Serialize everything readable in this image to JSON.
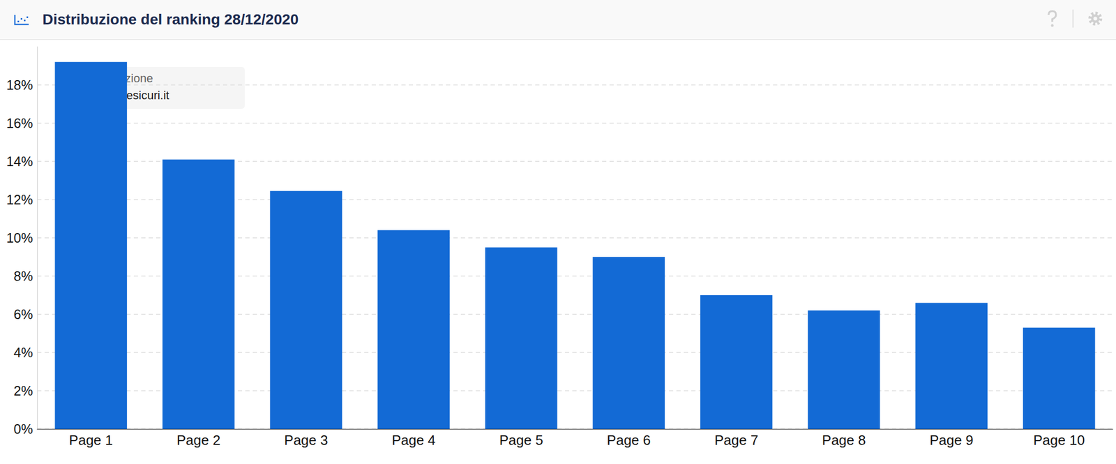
{
  "chart_data": {
    "type": "bar",
    "title": "Distribuzione del ranking 28/12/2020",
    "categories": [
      "Page 1",
      "Page 2",
      "Page 3",
      "Page 4",
      "Page 5",
      "Page 6",
      "Page 7",
      "Page 8",
      "Page 9",
      "Page 10"
    ],
    "values": [
      19.2,
      14.1,
      12.45,
      10.4,
      9.5,
      9.0,
      7.0,
      6.2,
      6.6,
      5.3
    ],
    "color": "#136ad5",
    "ylim": [
      0,
      20
    ],
    "yticks": [
      {
        "value": 0,
        "label": "0%"
      },
      {
        "value": 2,
        "label": "2%"
      },
      {
        "value": 4,
        "label": "4%"
      },
      {
        "value": 6,
        "label": "6%"
      },
      {
        "value": 8,
        "label": "8%"
      },
      {
        "value": 10,
        "label": "10%"
      },
      {
        "value": 12,
        "label": "12%"
      },
      {
        "value": 14,
        "label": "14%"
      },
      {
        "value": 16,
        "label": "16%"
      },
      {
        "value": 18,
        "label": "18%"
      }
    ],
    "grid": true,
    "annotations": [
      "Distribuzione",
      "viaggiaresicuri.it"
    ]
  }
}
